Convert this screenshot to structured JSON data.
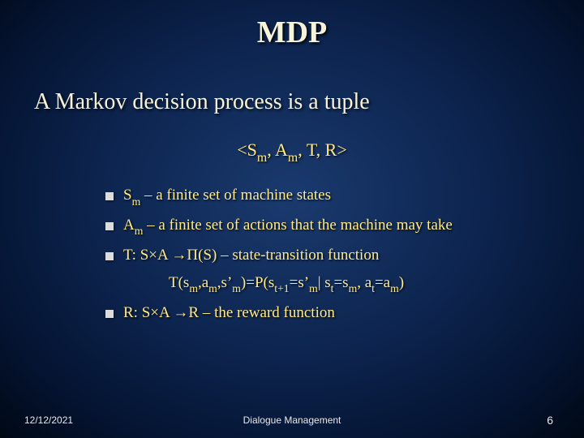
{
  "title": "MDP",
  "subtitle": "A Markov decision process is a tuple",
  "tuple_html": "&lt;S<span class='sub'>m</span>, A<span class='sub'>m</span>, T, R&gt;",
  "bullets": [
    {
      "html": "S<span class='sub'>m</span> &ndash; a finite set of machine states"
    },
    {
      "html": "A<span class='sub'>m</span> &ndash; a finite set of actions that the machine may take"
    },
    {
      "html": "T: S&times;A &rarr;&Pi;(S) &ndash; state-transition function"
    }
  ],
  "indent_html": "T(s<span class='sub'>m</span>,a<span class='sub'>m</span>,s&rsquo;<span class='sub'>m</span>)=P(s<span class='sub'>t+1</span>=s&rsquo;<span class='sub'>m</span>| s<span class='sub'>t</span>=s<span class='sub'>m</span>, a<span class='sub'>t</span>=a<span class='sub'>m</span>)",
  "bullet_last_html": "R: S&times;A &rarr;R &ndash; the reward function",
  "footer": {
    "date": "12/12/2021",
    "center": "Dialogue Management",
    "page": "6"
  },
  "colors": {
    "title": "#f7f3d8",
    "body": "#ffe989",
    "footer": "#e8e8e8"
  }
}
